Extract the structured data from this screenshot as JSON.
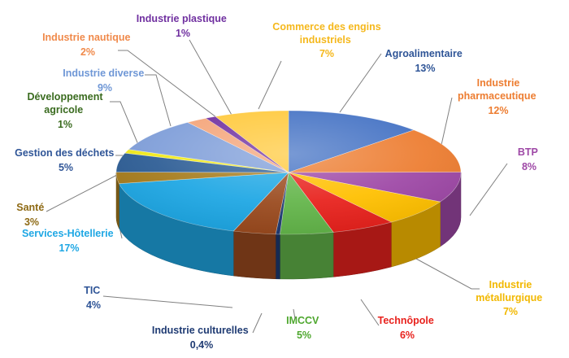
{
  "chart_data": {
    "type": "pie",
    "title": "",
    "style": "3d",
    "slices": [
      {
        "name": "Agroalimentaire",
        "value_label": "13%",
        "value": 13,
        "color": "#4472C4",
        "label_color": "#2F5597"
      },
      {
        "name": "Industrie pharmaceutique",
        "value_label": "12%",
        "value": 12,
        "color": "#ED7D31",
        "label_color": "#ED7D31"
      },
      {
        "name": "BTP",
        "value_label": "8%",
        "value": 8,
        "color": "#9E48A6",
        "label_color": "#9E48A6"
      },
      {
        "name": "Industrie métallurgique",
        "value_label": "7%",
        "value": 7,
        "color": "#FFC000",
        "label_color": "#F2B800"
      },
      {
        "name": "Technôpole",
        "value_label": "6%",
        "value": 6,
        "color": "#E8221D",
        "label_color": "#E8221D"
      },
      {
        "name": "IMCCV",
        "value_label": "5%",
        "value": 5,
        "color": "#63B54A",
        "label_color": "#4EA72E"
      },
      {
        "name": "Industrie culturelles",
        "value_label": "0,4%",
        "value": 0.4,
        "color": "#1F3B73",
        "label_color": "#1F3B73"
      },
      {
        "name": "TIC",
        "value_label": "4%",
        "value": 4,
        "color": "#9A4A1E",
        "label_color": "#2F5597"
      },
      {
        "name": "Services-Hôtellerie",
        "value_label": "17%",
        "value": 17,
        "color": "#1EA7E4",
        "label_color": "#1EA7E4"
      },
      {
        "name": "Santé",
        "value_label": "3%",
        "value": 3,
        "color": "#A67C1D",
        "label_color": "#8E6A14"
      },
      {
        "name": "Gestion des déchets",
        "value_label": "5%",
        "value": 5,
        "color": "#2D5D95",
        "label_color": "#2F5597"
      },
      {
        "name": "Développement agricole",
        "value_label": "1%",
        "value": 1,
        "color": "#F2EA1A",
        "label_color": "#3A6B1F"
      },
      {
        "name": "Industrie diverse",
        "value_label": "9%",
        "value": 9,
        "color": "#7F9ED9",
        "label_color": "#6F97D6"
      },
      {
        "name": "Industrie nautique",
        "value_label": "2%",
        "value": 2,
        "color": "#F4A57A",
        "label_color": "#F08A4B"
      },
      {
        "name": "Industrie plastique",
        "value_label": "1%",
        "value": 1,
        "color": "#7030A0",
        "label_color": "#7030A0"
      },
      {
        "name": "Commerce des engins industriels",
        "value_label": "7%",
        "value": 7,
        "color": "#FFC93C",
        "label_color": "#F5B81C"
      }
    ]
  }
}
